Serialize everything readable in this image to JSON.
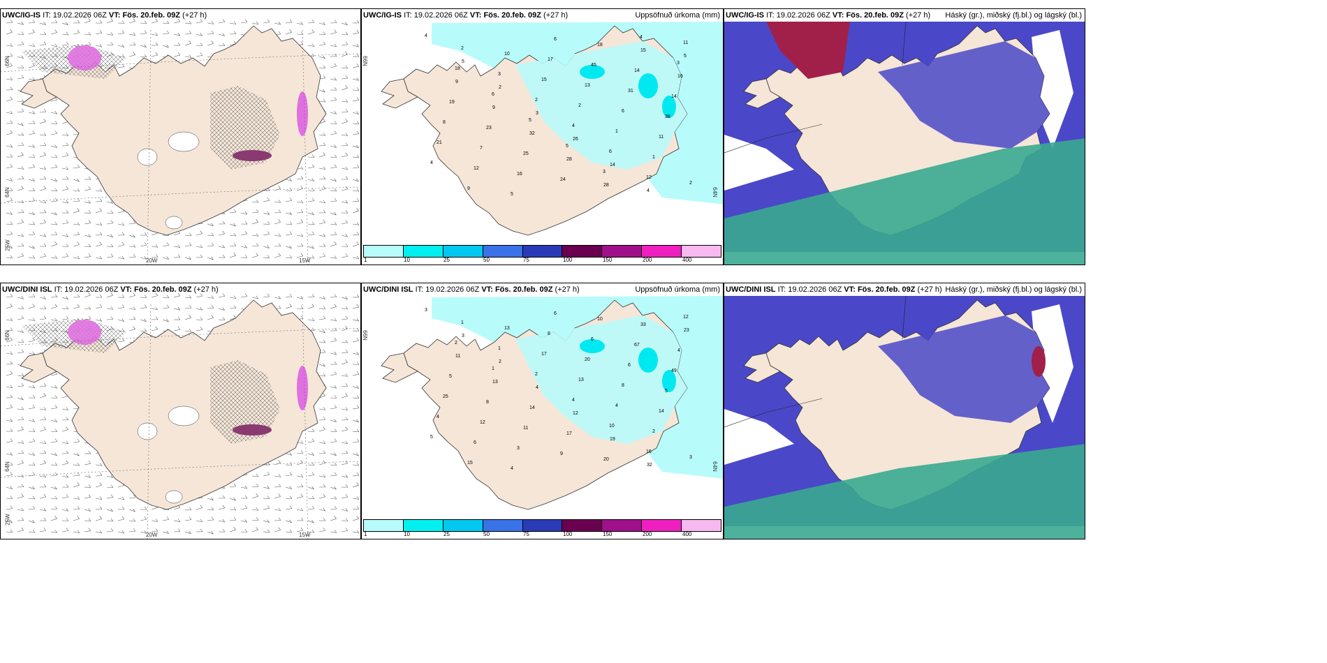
{
  "panels": [
    {
      "id": "p1",
      "model": "UWC/IG-IS",
      "it_label": "IT:",
      "it": "19.02.2026 06Z",
      "vt_label": "VT:",
      "vt": "Fös. 20.feb. 09Z",
      "lead": "(+27 h)",
      "title": "",
      "kind": "wind"
    },
    {
      "id": "p2",
      "model": "UWC/IG-IS",
      "it_label": "IT:",
      "it": "19.02.2026 06Z",
      "vt_label": "VT:",
      "vt": "Fös. 20.feb. 09Z",
      "lead": "(+27 h)",
      "title": "Uppsöfnuð úrkoma (mm)",
      "kind": "precip"
    },
    {
      "id": "p3",
      "model": "UWC/IG-IS",
      "it_label": "IT:",
      "it": "19.02.2026 06Z",
      "vt_label": "VT:",
      "vt": "Fös. 20.feb. 09Z",
      "lead": "(+27 h)",
      "title": "Háský (gr.), miðský (fj.bl.) og lágský (bl.)",
      "kind": "cloud"
    },
    {
      "id": "p4",
      "model": "UWC/DINI ISL",
      "it_label": "IT:",
      "it": "19.02.2026 06Z",
      "vt_label": "VT:",
      "vt": "Fös. 20.feb. 09Z",
      "lead": "(+27 h)",
      "title": "",
      "kind": "wind"
    },
    {
      "id": "p5",
      "model": "UWC/DINI ISL",
      "it_label": "IT:",
      "it": "19.02.2026 06Z",
      "vt_label": "VT:",
      "vt": "Fös. 20.feb. 09Z",
      "lead": "(+27 h)",
      "title": "Uppsöfnuð úrkoma (mm)",
      "kind": "precip"
    },
    {
      "id": "p6",
      "model": "UWC/DINI ISL",
      "it_label": "IT:",
      "it": "19.02.2026 06Z",
      "vt_label": "VT:",
      "vt": "Fös. 20.feb. 09Z",
      "lead": "(+27 h)",
      "title": "Háský (gr.), miðský (fj.bl.) og lágský (bl.)",
      "kind": "cloud"
    }
  ],
  "graticule": {
    "lat_top": "66N",
    "lat_bottom": "64N",
    "lon_left": "25W",
    "lon_mid": "20W",
    "lon_right": "15W"
  },
  "colorbar": {
    "ticks": [
      "1",
      "10",
      "25",
      "50",
      "75",
      "100",
      "150",
      "200",
      "400"
    ],
    "colors": [
      "#b8fbfb",
      "#00f0f0",
      "#00c8f0",
      "#3a72e8",
      "#2a3bb8",
      "#6a0050",
      "#a0108a",
      "#f020c0",
      "#f8b8f0"
    ]
  },
  "colors": {
    "land": "#f5e6d8",
    "precip_light": "#b8fbfb",
    "precip_mid": "#00e8f0",
    "cloud_high": "#4a48c8",
    "cloud_mid": "#3aa890",
    "cloud_red": "#a0204a",
    "snow_pink": "#e070e0"
  },
  "precip_labels_top": [
    "4",
    "5",
    "2",
    "3",
    "26",
    "14",
    "4",
    "5",
    "9",
    "9",
    "32",
    "28",
    "28",
    "15",
    "16",
    "19",
    "23",
    "25",
    "24",
    "18",
    "14",
    "14",
    "8",
    "7",
    "16",
    "6",
    "45",
    "31",
    "38",
    "21",
    "12",
    "5",
    "17",
    "13",
    "6",
    "11",
    "4",
    "9",
    "10",
    "15",
    "2",
    "1",
    "1",
    "2",
    "2",
    "3",
    "2",
    "4",
    "6",
    "12",
    "11",
    "18",
    "6",
    "5",
    "5",
    "3",
    "4",
    "3"
  ],
  "precip_labels_bottom": [
    "3",
    "3",
    "2",
    "4",
    "12",
    "19",
    "32",
    "23",
    "11",
    "13",
    "14",
    "17",
    "20",
    "33",
    "4",
    "5",
    "8",
    "11",
    "9",
    "10",
    "67",
    "49",
    "25",
    "12",
    "3",
    "6",
    "6",
    "6",
    "5",
    "4",
    "6",
    "4",
    "8",
    "20",
    "8",
    "14",
    "5",
    "15",
    "13",
    "17",
    "13",
    "4",
    "2",
    "3",
    "1",
    "1",
    "2",
    "4",
    "10",
    "16",
    "12",
    "2",
    "1"
  ]
}
